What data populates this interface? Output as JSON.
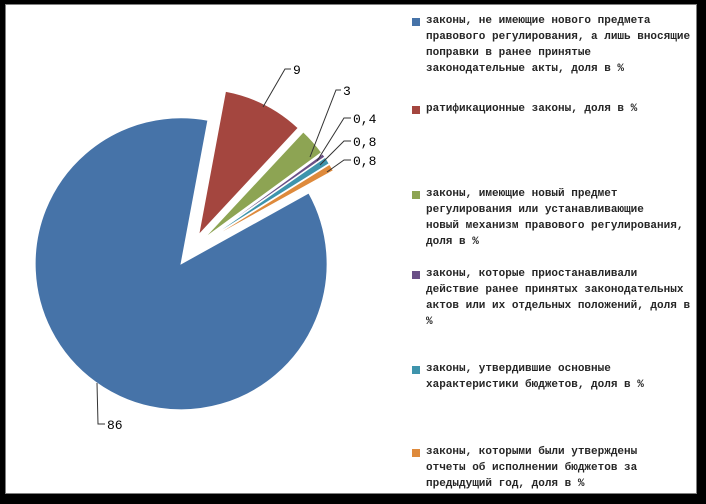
{
  "window": {
    "outer_background": "#000000",
    "chart_background": "#FFFFFF",
    "chart_border_color": "#808080"
  },
  "chart_data": {
    "type": "pie",
    "title": "",
    "legend_position": "right",
    "number_format": "comma-decimal",
    "start_angle_deg": 61,
    "exploded": true,
    "labels": [
      "законы, не имеющие нового предмета правового регулирования, а лишь вносящие поправки в ранее принятые законодательные акты, доля в %",
      "ратификационные законы, доля в %",
      "законы, имеющие новый предмет регулирования или устанавливающие новый механизм правового регулирования, доля в %",
      "законы, которые приостанавливали действие ранее принятых законодательных актов или их отдельных положений, доля в %",
      "законы, утвердившие основные характеристики бюджетов, доля в %",
      "законы, которыми были утверждены отчеты об исполнении бюджетов за предыдущий год, доля в %"
    ],
    "values": [
      86,
      9,
      3,
      0.4,
      0.8,
      0.8
    ],
    "value_labels": [
      "86",
      "9",
      "3",
      "0,4",
      "0,8",
      "0,8"
    ],
    "colors": [
      "#4673A8",
      "#A4463F",
      "#8DA453",
      "#6A5087",
      "#3E94AC",
      "#DE8A3C"
    ],
    "leader_line_color": "#333333",
    "value_label_color": "#000000"
  },
  "legend": {
    "text_color": "#262626",
    "items": [
      {
        "lines": [
          "законы, не имеющие нового предмета",
          "правового регулирования, а лишь вносящие",
          "поправки в ранее принятые",
          "законодательные акты, доля в %"
        ]
      },
      {
        "lines": [
          "ратификационные законы, доля в %"
        ]
      },
      {
        "lines": [
          "законы, имеющие новый предмет",
          "регулирования или устанавливающие",
          "новый механизм правового регулирования,",
          "доля в %"
        ]
      },
      {
        "lines": [
          "законы, которые приостанавливали",
          "действие ранее принятых законодательных",
          "актов или их отдельных положений, доля в",
          "%"
        ]
      },
      {
        "lines": [
          "законы, утвердившие основные",
          "характеристики бюджетов, доля в %"
        ]
      },
      {
        "lines": [
          "законы, которыми были утверждены",
          "отчеты об исполнении бюджетов за",
          "предыдущий год, доля в %"
        ]
      }
    ]
  }
}
